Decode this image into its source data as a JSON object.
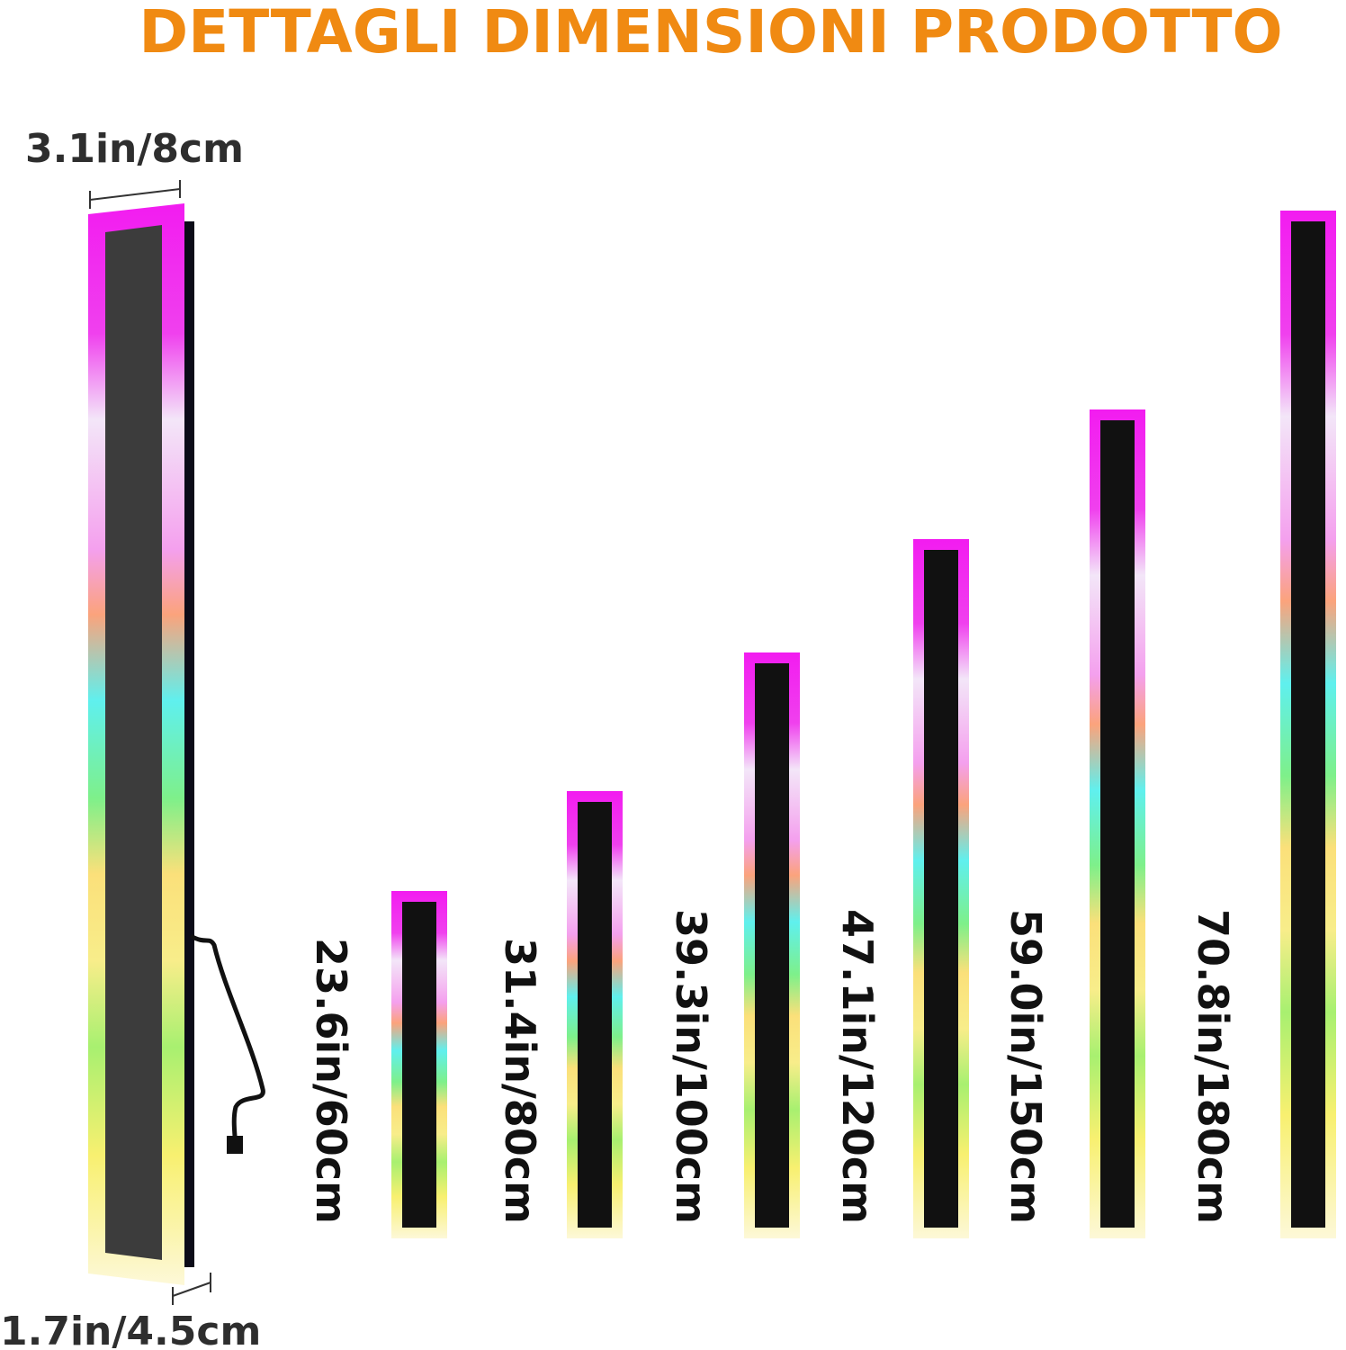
{
  "title": "DETTAGLI DIMENSIONI PRODOTTO",
  "width_label": "3.1in/8cm",
  "depth_label": "1.7in/4.5cm",
  "sizes": [
    "23.6in/60cm",
    "31.4in/80cm",
    "39.3in/100cm",
    "47.1in/120cm",
    "59.0in/150cm",
    "70.8in/180cm"
  ]
}
